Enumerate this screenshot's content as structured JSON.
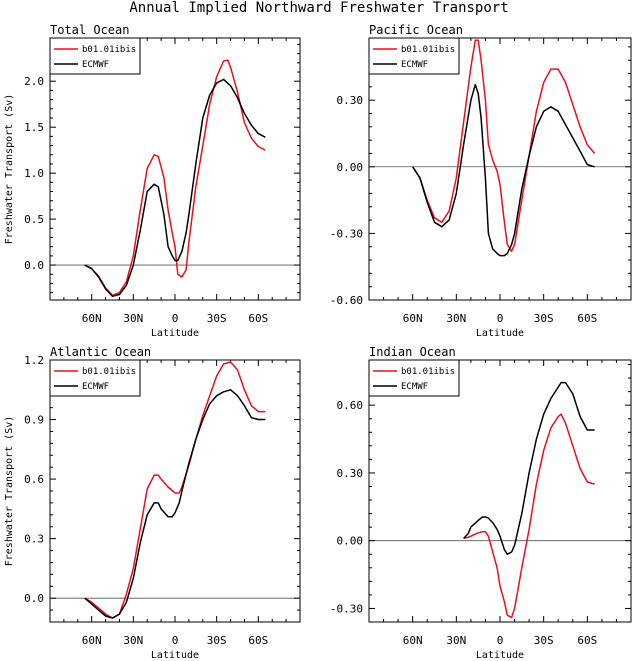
{
  "figure_title": "Annual Implied Northward Freshwater Transport",
  "colors": {
    "model": "#e8101e",
    "obs": "#000000",
    "zero_line": "#555555"
  },
  "legend": {
    "model": "b01.01ibis",
    "obs": "ECMWF"
  },
  "chart_data": [
    {
      "type": "line",
      "title": "Total Ocean",
      "xlabel": "Latitude",
      "ylabel": "Freshwater Transport (Sv)",
      "xlim": [
        90,
        -90
      ],
      "ylim": [
        -0.38,
        2.47
      ],
      "xticks": [
        60,
        30,
        0,
        -30,
        -60
      ],
      "xtick_labels": [
        "60N",
        "30N",
        "0",
        "30S",
        "60S"
      ],
      "yticks": [
        0.0,
        0.5,
        1.0,
        1.5,
        2.0
      ],
      "ytick_labels": [
        "0.0",
        "0.5",
        "1.0",
        "1.5",
        "2.0"
      ],
      "legend_position": "top-left",
      "grid": false,
      "series": [
        {
          "name": "b01.01ibis",
          "color": "#e8101e",
          "x": [
            65,
            60,
            55,
            50,
            45,
            40,
            35,
            30,
            25,
            20,
            15,
            12,
            8,
            5,
            2,
            0,
            -2,
            -5,
            -8,
            -10,
            -15,
            -20,
            -25,
            -30,
            -35,
            -38,
            -40,
            -45,
            -50,
            -55,
            -60,
            -65
          ],
          "y": [
            0,
            -0.04,
            -0.12,
            -0.25,
            -0.33,
            -0.3,
            -0.18,
            0.1,
            0.6,
            1.05,
            1.2,
            1.18,
            0.95,
            0.6,
            0.35,
            0.2,
            -0.1,
            -0.13,
            -0.05,
            0.25,
            0.85,
            1.3,
            1.75,
            2.05,
            2.22,
            2.23,
            2.15,
            1.88,
            1.55,
            1.38,
            1.29,
            1.25
          ]
        },
        {
          "name": "ECMWF",
          "color": "#000000",
          "x": [
            65,
            60,
            55,
            50,
            45,
            40,
            35,
            30,
            25,
            20,
            15,
            12,
            8,
            5,
            2,
            0,
            -2,
            -5,
            -8,
            -10,
            -15,
            -20,
            -25,
            -30,
            -35,
            -40,
            -45,
            -50,
            -55,
            -60,
            -65
          ],
          "y": [
            0,
            -0.04,
            -0.13,
            -0.26,
            -0.34,
            -0.32,
            -0.22,
            0.0,
            0.38,
            0.8,
            0.88,
            0.85,
            0.55,
            0.2,
            0.1,
            0.05,
            0.05,
            0.15,
            0.35,
            0.55,
            1.1,
            1.6,
            1.85,
            1.98,
            2.02,
            1.95,
            1.82,
            1.65,
            1.52,
            1.43,
            1.39
          ]
        }
      ]
    },
    {
      "type": "line",
      "title": "Pacific Ocean",
      "xlabel": "Latitude",
      "ylabel": "",
      "xlim": [
        90,
        -90
      ],
      "ylim": [
        -0.6,
        0.58
      ],
      "xticks": [
        60,
        30,
        0,
        -30,
        -60
      ],
      "xtick_labels": [
        "60N",
        "30N",
        "0",
        "30S",
        "60S"
      ],
      "yticks": [
        -0.6,
        -0.3,
        0.0,
        0.3
      ],
      "ytick_labels": [
        "-0.60",
        "-0.30",
        "0.00",
        "0.30"
      ],
      "legend_position": "top-left",
      "grid": false,
      "series": [
        {
          "name": "b01.01ibis",
          "color": "#e8101e",
          "x": [
            60,
            55,
            50,
            45,
            40,
            35,
            30,
            25,
            20,
            17,
            15,
            13,
            10,
            8,
            5,
            2,
            0,
            -3,
            -5,
            -8,
            -10,
            -15,
            -20,
            -25,
            -30,
            -35,
            -40,
            -45,
            -50,
            -55,
            -60,
            -65
          ],
          "y": [
            0,
            -0.05,
            -0.15,
            -0.23,
            -0.25,
            -0.2,
            -0.05,
            0.2,
            0.45,
            0.57,
            0.57,
            0.48,
            0.3,
            0.1,
            0.03,
            -0.02,
            -0.08,
            -0.25,
            -0.35,
            -0.38,
            -0.35,
            -0.15,
            0.05,
            0.25,
            0.38,
            0.44,
            0.44,
            0.38,
            0.28,
            0.18,
            0.1,
            0.06
          ]
        },
        {
          "name": "ECMWF",
          "color": "#000000",
          "x": [
            60,
            55,
            50,
            45,
            40,
            35,
            30,
            25,
            20,
            17,
            15,
            13,
            10,
            8,
            5,
            2,
            0,
            -3,
            -5,
            -8,
            -10,
            -15,
            -20,
            -25,
            -30,
            -35,
            -40,
            -45,
            -50,
            -55,
            -60,
            -65
          ],
          "y": [
            0,
            -0.05,
            -0.16,
            -0.25,
            -0.27,
            -0.24,
            -0.12,
            0.1,
            0.3,
            0.37,
            0.33,
            0.22,
            -0.05,
            -0.3,
            -0.37,
            -0.39,
            -0.4,
            -0.4,
            -0.39,
            -0.35,
            -0.3,
            -0.1,
            0.05,
            0.18,
            0.25,
            0.27,
            0.25,
            0.19,
            0.13,
            0.07,
            0.01,
            0
          ]
        }
      ]
    },
    {
      "type": "line",
      "title": "Atlantic Ocean",
      "xlabel": "Latitude",
      "ylabel": "Freshwater Transport (Sv)",
      "xlim": [
        90,
        -90
      ],
      "ylim": [
        -0.12,
        1.2
      ],
      "xticks": [
        60,
        30,
        0,
        -30,
        -60
      ],
      "xtick_labels": [
        "60N",
        "30N",
        "0",
        "30S",
        "60S"
      ],
      "yticks": [
        0.0,
        0.3,
        0.6,
        0.9,
        1.2
      ],
      "ytick_labels": [
        "0.0",
        "0.3",
        "0.6",
        "0.9",
        "1.2"
      ],
      "legend_position": "top-left",
      "grid": false,
      "series": [
        {
          "name": "b01.01ibis",
          "color": "#e8101e",
          "x": [
            65,
            60,
            55,
            50,
            45,
            40,
            35,
            30,
            25,
            20,
            15,
            12,
            10,
            5,
            0,
            -3,
            -5,
            -10,
            -15,
            -20,
            -25,
            -30,
            -35,
            -40,
            -45,
            -50,
            -55,
            -60,
            -65
          ],
          "y": [
            0,
            -0.02,
            -0.05,
            -0.08,
            -0.1,
            -0.08,
            0.02,
            0.15,
            0.35,
            0.55,
            0.62,
            0.62,
            0.6,
            0.56,
            0.53,
            0.53,
            0.56,
            0.67,
            0.8,
            0.92,
            1.02,
            1.12,
            1.18,
            1.19,
            1.15,
            1.05,
            0.97,
            0.94,
            0.94
          ]
        },
        {
          "name": "ECMWF",
          "color": "#000000",
          "x": [
            65,
            60,
            55,
            50,
            45,
            40,
            35,
            30,
            25,
            20,
            15,
            12,
            10,
            5,
            2,
            0,
            -3,
            -5,
            -10,
            -15,
            -20,
            -25,
            -30,
            -35,
            -40,
            -45,
            -50,
            -55,
            -60,
            -65
          ],
          "y": [
            0,
            -0.03,
            -0.06,
            -0.09,
            -0.1,
            -0.08,
            -0.02,
            0.1,
            0.28,
            0.42,
            0.48,
            0.48,
            0.45,
            0.41,
            0.41,
            0.43,
            0.48,
            0.54,
            0.68,
            0.8,
            0.9,
            0.98,
            1.02,
            1.04,
            1.05,
            1.02,
            0.97,
            0.91,
            0.9,
            0.9
          ]
        }
      ]
    },
    {
      "type": "line",
      "title": "Indian Ocean",
      "xlabel": "Latitude",
      "ylabel": "",
      "xlim": [
        90,
        -90
      ],
      "ylim": [
        -0.36,
        0.8
      ],
      "xticks": [
        60,
        30,
        0,
        -30,
        -60
      ],
      "xtick_labels": [
        "60N",
        "30N",
        "0",
        "30S",
        "60S"
      ],
      "yticks": [
        -0.3,
        0.0,
        0.3,
        0.6
      ],
      "ytick_labels": [
        "-0.30",
        "0.00",
        "0.30",
        "0.60"
      ],
      "legend_position": "top-left",
      "grid": false,
      "series": [
        {
          "name": "b01.01ibis",
          "color": "#e8101e",
          "x": [
            25,
            22,
            20,
            15,
            12,
            10,
            8,
            5,
            2,
            0,
            -3,
            -5,
            -8,
            -10,
            -15,
            -20,
            -25,
            -30,
            -35,
            -40,
            -42,
            -45,
            -50,
            -55,
            -60,
            -65
          ],
          "y": [
            0.01,
            0.015,
            0.02,
            0.035,
            0.04,
            0.04,
            0.02,
            -0.05,
            -0.12,
            -0.2,
            -0.27,
            -0.33,
            -0.34,
            -0.3,
            -0.12,
            0.05,
            0.25,
            0.4,
            0.5,
            0.55,
            0.56,
            0.52,
            0.42,
            0.32,
            0.26,
            0.25
          ]
        },
        {
          "name": "ECMWF",
          "color": "#000000",
          "x": [
            25,
            22,
            20,
            15,
            12,
            10,
            8,
            5,
            2,
            0,
            -3,
            -5,
            -8,
            -10,
            -15,
            -20,
            -25,
            -30,
            -35,
            -40,
            -42,
            -45,
            -50,
            -55,
            -60,
            -65
          ],
          "y": [
            0.01,
            0.03,
            0.06,
            0.09,
            0.105,
            0.105,
            0.1,
            0.08,
            0.05,
            0.02,
            -0.04,
            -0.06,
            -0.05,
            -0.02,
            0.12,
            0.3,
            0.45,
            0.56,
            0.63,
            0.68,
            0.7,
            0.7,
            0.65,
            0.55,
            0.49,
            0.49
          ]
        }
      ]
    }
  ]
}
